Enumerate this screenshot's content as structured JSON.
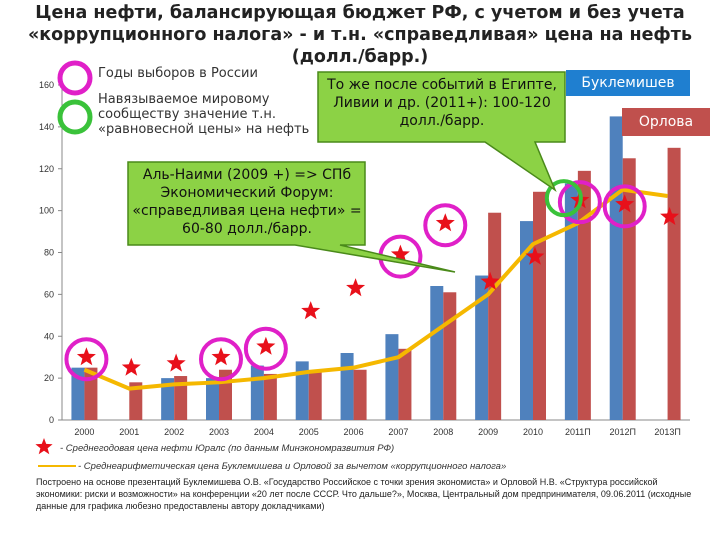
{
  "title": "Цена нефти, балансирующая бюджет РФ, с учетом и без учета «коррупционного налога» - и т.н. «справедливая» цена на нефть (долл./барр.)",
  "legend": {
    "elections": "Годы выборов в России",
    "imposed": "Навязываемое мировому сообществу значение т.н. «равновесной цены» на нефть"
  },
  "callouts": {
    "arab_events": "То же после событий в Египте, Ливии и др. (2011+): 100-120 долл./барр.",
    "al_naimi": "Аль-Наими (2009 +) => СПб Экономический Форум: «справедливая цена нефти» = 60-80 долл./барр."
  },
  "names": {
    "buklemishev": "Буклемишев",
    "orlova": "Орлова"
  },
  "footnotes": {
    "stars": "- Среднегодовая цена нефти Юралс (по данным Минэкономразвития РФ)",
    "line": "- Среднеарифметическая цена Буклемишева и Орловой за вычетом «коррупционного налога»"
  },
  "source": "Построено на основе презентаций Буклемишева О.В. «Государство Российское с точки зрения экономиста» и Орловой Н.В. «Структура российской экономики: риски и возможности» на конференции «20 лет после СССР. Что дальше?», Москва, Центральный дом предпринимателя, 09.06.2011 (исходные данные для графика любезно предоставлены автору докладчиками)",
  "colors": {
    "blue": "#4f81bd",
    "red": "#c0504d",
    "line": "#f5b800",
    "star": "#e8101a",
    "magenta": "#e020c8",
    "green": "#3ac23a",
    "callout_fill": "#8cd245",
    "name_fill": "#1f7fd0",
    "orlova_fill": "#c0504d"
  },
  "chart_data": {
    "type": "bar",
    "categories": [
      "2000",
      "2001",
      "2002",
      "2003",
      "2004",
      "2005",
      "2006",
      "2007",
      "2008",
      "2009",
      "2010",
      "2011П",
      "2012П",
      "2013П"
    ],
    "ylim": [
      0,
      160
    ],
    "yticks": [
      0,
      20,
      40,
      60,
      80,
      100,
      120,
      140,
      160
    ],
    "series": [
      {
        "name": "Буклемишев",
        "kind": "bar",
        "values": [
          25,
          null,
          20,
          20,
          26,
          28,
          32,
          41,
          64,
          69,
          95,
          113,
          145,
          null
        ]
      },
      {
        "name": "Орлова",
        "kind": "bar",
        "values": [
          25,
          18,
          21,
          24,
          22,
          23,
          24,
          34,
          61,
          99,
          109,
          119,
          125,
          130
        ]
      },
      {
        "kind": "star",
        "values": [
          30,
          25,
          27,
          30,
          35,
          52,
          63,
          79,
          94,
          66,
          78,
          105,
          103,
          97
        ]
      },
      {
        "kind": "line",
        "values": [
          24,
          15,
          17,
          18,
          20,
          23,
          25,
          30,
          45,
          60,
          84,
          94,
          110,
          107
        ]
      }
    ],
    "elections_years": [
      "2000",
      "2003",
      "2004",
      "2007",
      "2008",
      "2011П",
      "2012П"
    ],
    "imposed_equilibrium_years": [
      "2011П"
    ]
  }
}
